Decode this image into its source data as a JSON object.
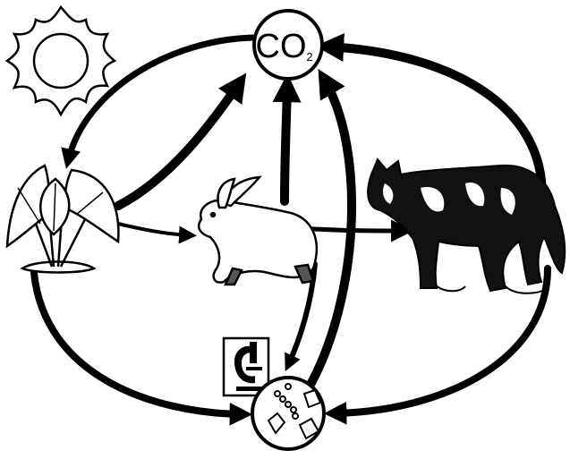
{
  "nodes": [
    {
      "label": "CO",
      "subscript": "2"
    }
  ]
}
